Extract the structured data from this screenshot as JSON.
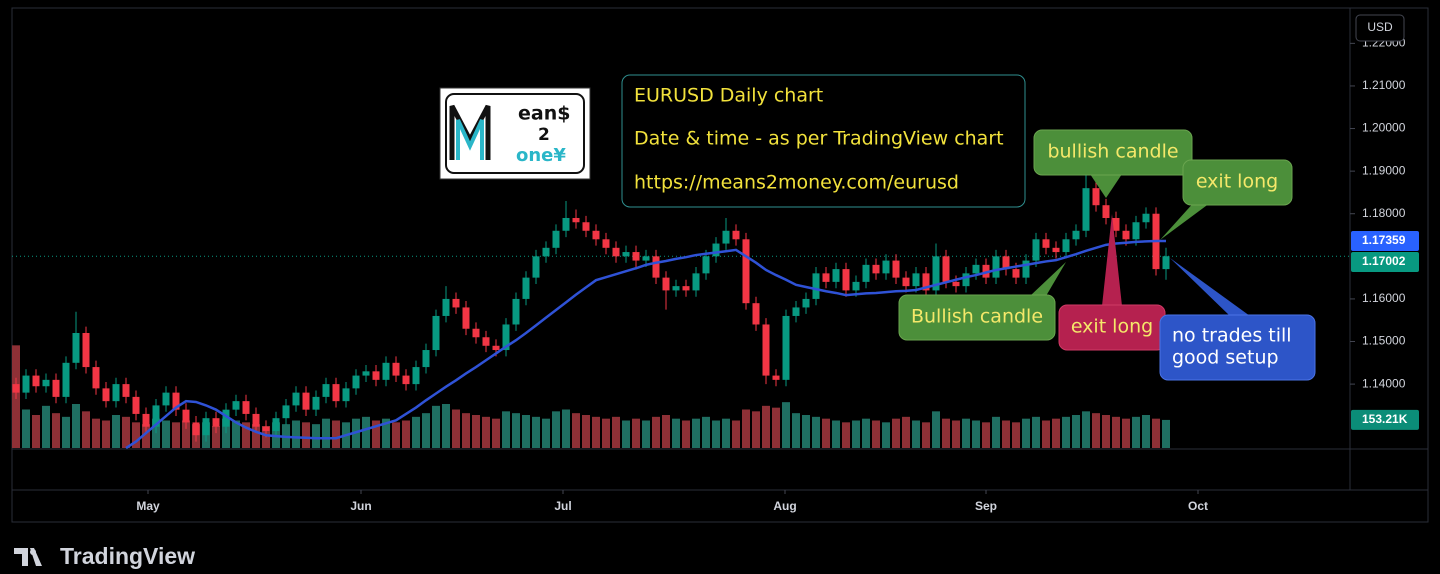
{
  "chart_data": {
    "type": "candlestick",
    "currency": "USD",
    "brand": "TradingView",
    "ylim": [
      1.125,
      1.2283
    ],
    "yticks": [
      {
        "value": 1.22,
        "label": "1.22000"
      },
      {
        "value": 1.21,
        "label": "1.21000"
      },
      {
        "value": 1.2,
        "label": "1.20000"
      },
      {
        "value": 1.19,
        "label": "1.19000"
      },
      {
        "value": 1.18,
        "label": "1.18000"
      },
      {
        "value": 1.16,
        "label": "1.16000"
      },
      {
        "value": 1.15,
        "label": "1.15000"
      },
      {
        "value": 1.14,
        "label": "1.14000"
      }
    ],
    "xticks": [
      {
        "value": 13.2,
        "label": "May"
      },
      {
        "value": 34.5,
        "label": "Jun"
      },
      {
        "value": 54.7,
        "label": "Jul"
      },
      {
        "value": 76.9,
        "label": "Aug"
      },
      {
        "value": 97,
        "label": "Sep"
      },
      {
        "value": 118.2,
        "label": "Oct"
      }
    ],
    "candles": {
      "color_up": "#089981",
      "color_down": "#f23645",
      "last_label": "1.17002",
      "open": [
        1.14,
        1.138,
        1.142,
        1.1395,
        1.141,
        1.137,
        1.145,
        1.152,
        1.144,
        1.139,
        1.136,
        1.14,
        1.137,
        1.133,
        1.13,
        1.135,
        1.138,
        1.134,
        1.131,
        1.128,
        1.132,
        1.13,
        1.134,
        1.136,
        1.133,
        1.13,
        1.129,
        1.132,
        1.135,
        1.138,
        1.134,
        1.137,
        1.14,
        1.136,
        1.139,
        1.142,
        1.143,
        1.141,
        1.145,
        1.142,
        1.14,
        1.144,
        1.148,
        1.156,
        1.16,
        1.158,
        1.153,
        1.151,
        1.149,
        1.148,
        1.154,
        1.16,
        1.165,
        1.17,
        1.172,
        1.176,
        1.179,
        1.178,
        1.176,
        1.174,
        1.172,
        1.17,
        1.171,
        1.169,
        1.17,
        1.165,
        1.162,
        1.163,
        1.162,
        1.166,
        1.17,
        1.173,
        1.176,
        1.174,
        1.159,
        1.154,
        1.142,
        1.141,
        1.156,
        1.158,
        1.16,
        1.166,
        1.164,
        1.167,
        1.162,
        1.164,
        1.168,
        1.166,
        1.169,
        1.165,
        1.163,
        1.166,
        1.162,
        1.17,
        1.164,
        1.163,
        1.166,
        1.168,
        1.165,
        1.17,
        1.167,
        1.165,
        1.169,
        1.174,
        1.172,
        1.171,
        1.174,
        1.176,
        1.186,
        1.182,
        1.179,
        1.176,
        1.174,
        1.178,
        1.18,
        1.167
      ],
      "high": [
        1.1415,
        1.1435,
        1.1435,
        1.1425,
        1.1425,
        1.1465,
        1.157,
        1.1535,
        1.1455,
        1.1405,
        1.1415,
        1.1415,
        1.1385,
        1.1345,
        1.1365,
        1.1395,
        1.1395,
        1.1355,
        1.1325,
        1.1335,
        1.1335,
        1.1355,
        1.1375,
        1.1375,
        1.1345,
        1.1315,
        1.1335,
        1.1365,
        1.1395,
        1.1395,
        1.1385,
        1.1415,
        1.1415,
        1.1405,
        1.1435,
        1.1445,
        1.1445,
        1.1465,
        1.1465,
        1.1435,
        1.1455,
        1.1495,
        1.1575,
        1.163,
        1.1615,
        1.1595,
        1.1545,
        1.1525,
        1.1505,
        1.1555,
        1.1615,
        1.1665,
        1.1715,
        1.1735,
        1.1775,
        1.183,
        1.181,
        1.1795,
        1.1775,
        1.1755,
        1.1735,
        1.1725,
        1.1725,
        1.1715,
        1.1715,
        1.1665,
        1.1645,
        1.1645,
        1.1675,
        1.1715,
        1.1745,
        1.179,
        1.1775,
        1.1755,
        1.1605,
        1.1555,
        1.1435,
        1.1575,
        1.1595,
        1.1615,
        1.1675,
        1.1675,
        1.1685,
        1.1685,
        1.1655,
        1.1695,
        1.1695,
        1.1705,
        1.1705,
        1.1665,
        1.1675,
        1.1675,
        1.173,
        1.1715,
        1.1655,
        1.1675,
        1.1695,
        1.1695,
        1.1715,
        1.1715,
        1.1685,
        1.1705,
        1.1755,
        1.1755,
        1.1735,
        1.1755,
        1.1775,
        1.192,
        1.1875,
        1.1835,
        1.1805,
        1.1775,
        1.1795,
        1.1815,
        1.1815,
        1.172
      ],
      "low": [
        1.1365,
        1.1365,
        1.138,
        1.138,
        1.1355,
        1.1355,
        1.1435,
        1.1425,
        1.1375,
        1.1345,
        1.1345,
        1.1355,
        1.1315,
        1.1285,
        1.1285,
        1.1335,
        1.1325,
        1.1295,
        1.1265,
        1.1265,
        1.1285,
        1.1285,
        1.1325,
        1.1315,
        1.1285,
        1.1275,
        1.1275,
        1.1305,
        1.1335,
        1.1325,
        1.1325,
        1.1355,
        1.1345,
        1.1345,
        1.1375,
        1.1405,
        1.1395,
        1.1395,
        1.1405,
        1.1385,
        1.1385,
        1.1425,
        1.1465,
        1.1545,
        1.1565,
        1.1515,
        1.1495,
        1.1475,
        1.1465,
        1.1465,
        1.1525,
        1.1585,
        1.1635,
        1.1685,
        1.1705,
        1.1745,
        1.1765,
        1.1745,
        1.1725,
        1.1705,
        1.1685,
        1.1685,
        1.1675,
        1.1675,
        1.1635,
        1.1575,
        1.1605,
        1.1605,
        1.1605,
        1.1645,
        1.1685,
        1.1715,
        1.1725,
        1.1575,
        1.1525,
        1.14,
        1.1395,
        1.1395,
        1.1545,
        1.1565,
        1.1585,
        1.1625,
        1.1625,
        1.1605,
        1.1605,
        1.1625,
        1.1645,
        1.1645,
        1.1635,
        1.1615,
        1.1615,
        1.1605,
        1.1605,
        1.1625,
        1.1615,
        1.1615,
        1.1645,
        1.1635,
        1.1635,
        1.1655,
        1.1635,
        1.1635,
        1.1675,
        1.1705,
        1.1695,
        1.1695,
        1.1725,
        1.1745,
        1.1805,
        1.1775,
        1.1745,
        1.1725,
        1.1725,
        1.1765,
        1.1655,
        1.1645
      ],
      "close": [
        1.138,
        1.142,
        1.1395,
        1.141,
        1.137,
        1.145,
        1.152,
        1.144,
        1.139,
        1.136,
        1.14,
        1.137,
        1.133,
        1.13,
        1.135,
        1.138,
        1.134,
        1.131,
        1.128,
        1.132,
        1.13,
        1.134,
        1.136,
        1.133,
        1.13,
        1.129,
        1.132,
        1.135,
        1.138,
        1.134,
        1.137,
        1.14,
        1.136,
        1.139,
        1.142,
        1.143,
        1.141,
        1.145,
        1.142,
        1.14,
        1.144,
        1.148,
        1.156,
        1.16,
        1.158,
        1.153,
        1.151,
        1.149,
        1.148,
        1.154,
        1.16,
        1.165,
        1.17,
        1.172,
        1.176,
        1.179,
        1.178,
        1.176,
        1.174,
        1.172,
        1.17,
        1.171,
        1.169,
        1.17,
        1.165,
        1.162,
        1.163,
        1.162,
        1.166,
        1.17,
        1.173,
        1.176,
        1.174,
        1.159,
        1.154,
        1.142,
        1.141,
        1.156,
        1.158,
        1.16,
        1.166,
        1.164,
        1.167,
        1.162,
        1.164,
        1.168,
        1.166,
        1.169,
        1.165,
        1.163,
        1.166,
        1.162,
        1.17,
        1.164,
        1.163,
        1.166,
        1.168,
        1.165,
        1.17,
        1.167,
        1.165,
        1.169,
        1.174,
        1.172,
        1.171,
        1.174,
        1.176,
        1.186,
        1.182,
        1.179,
        1.176,
        1.174,
        1.178,
        1.18,
        1.167,
        1.17002
      ]
    },
    "ma": {
      "color": "#2f52d6",
      "last_label": "1.17359",
      "values": [
        null,
        null,
        null,
        null,
        null,
        null,
        null,
        null,
        null,
        null,
        null,
        1.125,
        1.1265,
        1.1285,
        1.1305,
        1.1325,
        1.1345,
        1.136,
        1.1358,
        1.135,
        1.134,
        1.1325,
        1.131,
        1.1298,
        1.1288,
        1.128,
        1.1278,
        1.1276,
        1.1275,
        1.1274,
        1.1273,
        1.1273,
        1.1273,
        1.128,
        1.1287,
        1.1294,
        1.1301,
        1.1308,
        1.1315,
        1.133,
        1.1345,
        1.1362,
        1.1378,
        1.1394,
        1.1409,
        1.1425,
        1.144,
        1.1456,
        1.1472,
        1.1488,
        1.1503,
        1.152,
        1.1538,
        1.1556,
        1.1574,
        1.1592,
        1.161,
        1.1627,
        1.1644,
        1.1651,
        1.1658,
        1.1665,
        1.1672,
        1.168,
        1.1685,
        1.1689,
        1.1694,
        1.1698,
        1.1703,
        1.1706,
        1.1709,
        1.1712,
        1.1715,
        1.17,
        1.1685,
        1.1668,
        1.1656,
        1.1645,
        1.1633,
        1.1628,
        1.1623,
        1.1618,
        1.1614,
        1.1609,
        1.1611,
        1.1613,
        1.1614,
        1.1616,
        1.1618,
        1.1619,
        1.1621,
        1.1627,
        1.1633,
        1.1639,
        1.1645,
        1.1651,
        1.1656,
        1.1662,
        1.1668,
        1.1672,
        1.1676,
        1.168,
        1.1684,
        1.1688,
        1.1691,
        1.1698,
        1.1705,
        1.1713,
        1.172,
        1.1727,
        1.173,
        1.1732,
        1.1734,
        1.1735,
        1.1736,
        1.17359
      ]
    },
    "volume": {
      "color_up": "#1f6f62",
      "color_down": "#8e3036",
      "last_label": "153.21K",
      "vlim": [
        0,
        2400
      ],
      "values": [
        560,
        210,
        180,
        230,
        190,
        170,
        240,
        200,
        160,
        150,
        180,
        170,
        140,
        130,
        160,
        150,
        140,
        150,
        130,
        140,
        120,
        160,
        150,
        140,
        130,
        120,
        140,
        130,
        150,
        140,
        130,
        160,
        150,
        140,
        160,
        170,
        150,
        160,
        140,
        150,
        170,
        190,
        230,
        240,
        210,
        190,
        180,
        170,
        160,
        200,
        190,
        180,
        170,
        160,
        200,
        210,
        190,
        180,
        170,
        160,
        170,
        150,
        160,
        150,
        170,
        180,
        160,
        150,
        160,
        170,
        150,
        160,
        150,
        210,
        200,
        230,
        220,
        250,
        190,
        180,
        170,
        160,
        150,
        140,
        150,
        160,
        150,
        140,
        160,
        170,
        150,
        140,
        200,
        160,
        150,
        160,
        150,
        140,
        170,
        150,
        140,
        160,
        170,
        150,
        160,
        170,
        180,
        200,
        190,
        180,
        170,
        160,
        170,
        180,
        160,
        153.21
      ]
    },
    "logo": [
      "ean$",
      "2",
      "one¥"
    ],
    "info": [
      "EURUSD Daily chart",
      "Date & time - as per TradingView chart",
      "https://means2money.com/eurusd"
    ],
    "callouts": [
      "bullish candle",
      "exit long",
      "Bullish candle",
      "exit long",
      [
        "no trades till",
        "good setup"
      ]
    ]
  }
}
